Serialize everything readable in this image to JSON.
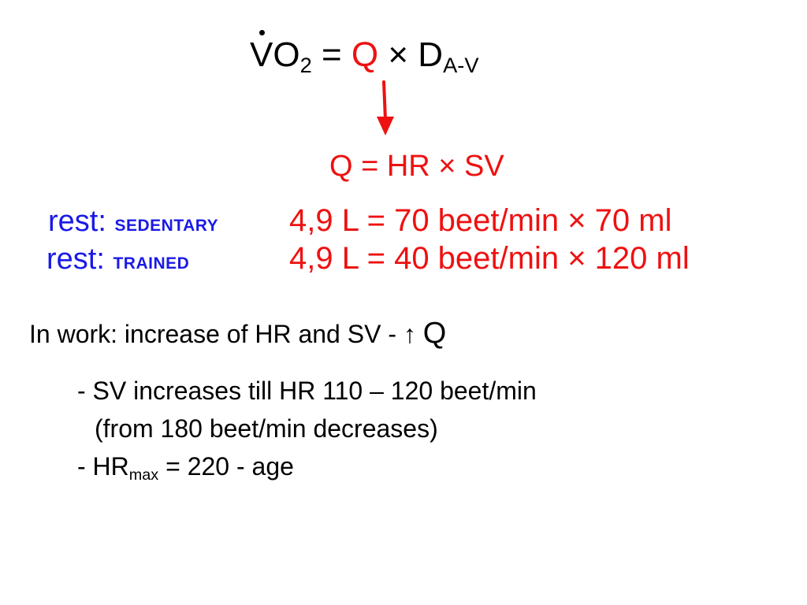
{
  "colors": {
    "accent_red": "#ee1111",
    "label_blue": "#1a1ae6",
    "text": "#000000"
  },
  "formula": {
    "v": "V",
    "o": "O",
    "sub2": "2",
    "eq": " = ",
    "q": "Q",
    "times": " × D",
    "sub_av": "A-V"
  },
  "arrow_icon": "down-arrow-icon",
  "q_equation": "Q = HR × SV",
  "rows": [
    {
      "rest": "rest: ",
      "group": "SEDENTARY",
      "equation": "4,9 L = 70 beet/min × 70 ml"
    },
    {
      "rest": "rest: ",
      "group": "TRAINED",
      "equation": "4,9 L = 40 beet/min × 120 ml"
    }
  ],
  "work": {
    "text": "In work: increase of HR and SV - ↑ ",
    "q": "Q"
  },
  "bullets": {
    "b1": "- SV increases till HR 110 – 120 beet/min",
    "b2": "(from 180 beet/min decreases)",
    "b3_prefix": "- HR",
    "b3_sub": "max",
    "b3_suffix": " = 220 - age"
  }
}
